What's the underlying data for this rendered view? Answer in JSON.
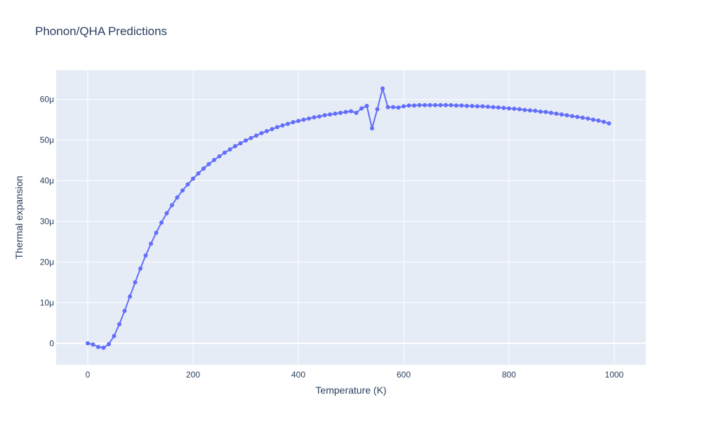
{
  "chart_data": {
    "type": "line",
    "title": "Phonon/QHA Predictions",
    "xlabel": "Temperature (K)",
    "ylabel": "Thermal expansion",
    "xlim": [
      -60,
      1060
    ],
    "ylim": [
      -5.3e-06,
      6.72e-05
    ],
    "x_ticks": [
      0,
      200,
      400,
      600,
      800,
      1000
    ],
    "x_tick_labels": [
      "0",
      "200",
      "400",
      "600",
      "800",
      "1000"
    ],
    "y_ticks": [
      0,
      1e-05,
      2e-05,
      3e-05,
      4e-05,
      5e-05,
      6e-05
    ],
    "y_tick_labels": [
      "0",
      "10μ",
      "20μ",
      "30μ",
      "40μ",
      "50μ",
      "60μ"
    ],
    "grid": true,
    "colors": {
      "series": "#636efa",
      "plot_bg": "#e5ecf6",
      "grid": "#ffffff",
      "text": "#2a3f5f"
    },
    "series": [
      {
        "mode": "lines+markers",
        "x": [
          0,
          10,
          20,
          30,
          40,
          50,
          60,
          70,
          80,
          90,
          100,
          110,
          120,
          130,
          140,
          150,
          160,
          170,
          180,
          190,
          200,
          210,
          220,
          230,
          240,
          250,
          260,
          270,
          280,
          290,
          300,
          310,
          320,
          330,
          340,
          350,
          360,
          370,
          380,
          390,
          400,
          410,
          420,
          430,
          440,
          450,
          460,
          470,
          480,
          490,
          500,
          510,
          520,
          530,
          540,
          550,
          560,
          570,
          580,
          590,
          600,
          610,
          620,
          630,
          640,
          650,
          660,
          670,
          680,
          690,
          700,
          710,
          720,
          730,
          740,
          750,
          760,
          770,
          780,
          790,
          800,
          810,
          820,
          830,
          840,
          850,
          860,
          870,
          880,
          890,
          900,
          910,
          920,
          930,
          940,
          950,
          960,
          970,
          980,
          990
        ],
        "y": [
          0.0,
          -3e-07,
          -9e-07,
          -1.1e-06,
          -2e-07,
          1.8e-06,
          4.7e-06,
          8e-06,
          1.15e-05,
          1.5e-05,
          1.84e-05,
          2.16e-05,
          2.45e-05,
          2.72e-05,
          2.97e-05,
          3.2e-05,
          3.4e-05,
          3.59e-05,
          3.76e-05,
          3.91e-05,
          4.05e-05,
          4.18e-05,
          4.3e-05,
          4.41e-05,
          4.51e-05,
          4.6e-05,
          4.69e-05,
          4.77e-05,
          4.85e-05,
          4.92e-05,
          4.99e-05,
          5.05e-05,
          5.11e-05,
          5.17e-05,
          5.22e-05,
          5.27e-05,
          5.32e-05,
          5.36e-05,
          5.4e-05,
          5.44e-05,
          5.47e-05,
          5.5e-05,
          5.53e-05,
          5.56e-05,
          5.58e-05,
          5.61e-05,
          5.63e-05,
          5.65e-05,
          5.67e-05,
          5.69e-05,
          5.71e-05,
          5.67e-05,
          5.78e-05,
          5.84e-05,
          5.29e-05,
          5.76e-05,
          6.27e-05,
          5.81e-05,
          5.81e-05,
          5.8e-05,
          5.83e-05,
          5.85e-05,
          5.85e-05,
          5.86e-05,
          5.86e-05,
          5.86e-05,
          5.86e-05,
          5.86e-05,
          5.86e-05,
          5.86e-05,
          5.85e-05,
          5.85e-05,
          5.84e-05,
          5.84e-05,
          5.83e-05,
          5.83e-05,
          5.82e-05,
          5.81e-05,
          5.8e-05,
          5.79e-05,
          5.78e-05,
          5.77e-05,
          5.76e-05,
          5.74e-05,
          5.73e-05,
          5.72e-05,
          5.7e-05,
          5.69e-05,
          5.67e-05,
          5.65e-05,
          5.63e-05,
          5.61e-05,
          5.59e-05,
          5.57e-05,
          5.55e-05,
          5.53e-05,
          5.5e-05,
          5.48e-05,
          5.45e-05,
          5.41e-05
        ]
      }
    ]
  }
}
